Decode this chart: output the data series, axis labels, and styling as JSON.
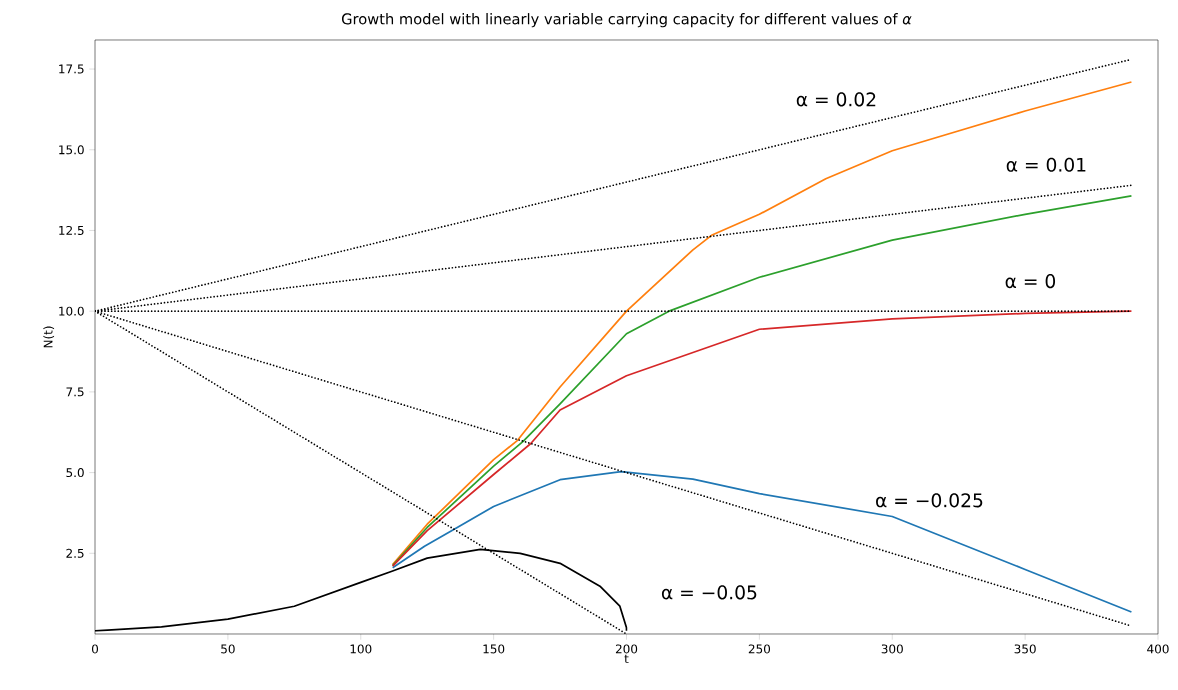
{
  "chart_data": {
    "type": "line",
    "title": "Growth model with linearly variable carrying capacity for different values of *α*",
    "xlabel": "t",
    "ylabel": "N(t)",
    "xlim": [
      0,
      400
    ],
    "ylim": [
      0,
      18.4
    ],
    "xticks": [
      0,
      50,
      100,
      150,
      200,
      250,
      300,
      350,
      400
    ],
    "yticks": [
      {
        "value": 2.5,
        "label": "2.5"
      },
      {
        "value": 5,
        "label": "5.0"
      },
      {
        "value": 7.5,
        "label": "7.5"
      },
      {
        "value": 10,
        "label": "10.0"
      },
      {
        "value": 12.5,
        "label": "12.5"
      },
      {
        "value": 15,
        "label": "15.0"
      },
      {
        "value": 17.5,
        "label": "17.5"
      }
    ],
    "grid": false,
    "series": [
      {
        "color": "#ff7f0e",
        "line_style": "solid",
        "x": [
          112,
          125,
          150,
          159,
          175,
          200,
          225,
          232,
          250,
          275,
          300,
          350,
          390
        ],
        "values": [
          2.15,
          3.4,
          5.4,
          6.0,
          7.65,
          10.0,
          11.9,
          12.35,
          13.0,
          14.1,
          14.97,
          16.2,
          17.1
        ]
      },
      {
        "color": "#2ca02c",
        "line_style": "solid",
        "x": [
          112,
          125,
          150,
          161,
          175,
          200,
          216,
          250,
          300,
          350,
          390
        ],
        "values": [
          2.12,
          3.3,
          5.2,
          5.96,
          7.13,
          9.3,
          10.0,
          11.05,
          12.2,
          13.0,
          13.57
        ]
      },
      {
        "color": "#1f77b4",
        "line_style": "solid",
        "x": [
          112,
          124,
          135,
          150,
          175,
          198,
          225,
          250,
          300,
          350,
          390
        ],
        "values": [
          2.05,
          2.72,
          3.24,
          3.95,
          4.78,
          5.03,
          4.8,
          4.35,
          3.64,
          2.0,
          0.68
        ]
      },
      {
        "color": "#d62728",
        "line_style": "solid",
        "x": [
          112,
          125,
          150,
          164,
          175,
          200,
          250,
          300,
          350,
          390
        ],
        "values": [
          2.1,
          3.2,
          4.94,
          5.9,
          6.94,
          8.0,
          9.44,
          9.76,
          9.93,
          10.0
        ]
      },
      {
        "color": "#000000",
        "line_style": "solid",
        "x": [
          0,
          25,
          50,
          75,
          100,
          112,
          125,
          145,
          160,
          175,
          190,
          197.5,
          200,
          200
        ],
        "values": [
          0.1,
          0.22,
          0.46,
          0.86,
          1.6,
          1.95,
          2.35,
          2.62,
          2.5,
          2.19,
          1.48,
          0.86,
          0.19,
          0.1
        ]
      },
      {
        "color": "#000000",
        "line_style": "dotted",
        "x": [
          0,
          390
        ],
        "values": [
          10,
          17.8
        ]
      },
      {
        "color": "#000000",
        "line_style": "dotted",
        "x": [
          0,
          390
        ],
        "values": [
          10,
          13.9
        ]
      },
      {
        "color": "#000000",
        "line_style": "dotted",
        "x": [
          0,
          390
        ],
        "values": [
          10,
          10
        ]
      },
      {
        "color": "#000000",
        "line_style": "dotted",
        "x": [
          0,
          390
        ],
        "values": [
          10,
          0.25
        ]
      },
      {
        "color": "#000000",
        "line_style": "dotted",
        "x": [
          0,
          200
        ],
        "values": [
          10,
          0
        ]
      }
    ],
    "annotations": [
      "α = 0.02",
      "α = 0.01",
      "α = 0",
      "α = −0.025",
      "α = −0.05"
    ]
  }
}
